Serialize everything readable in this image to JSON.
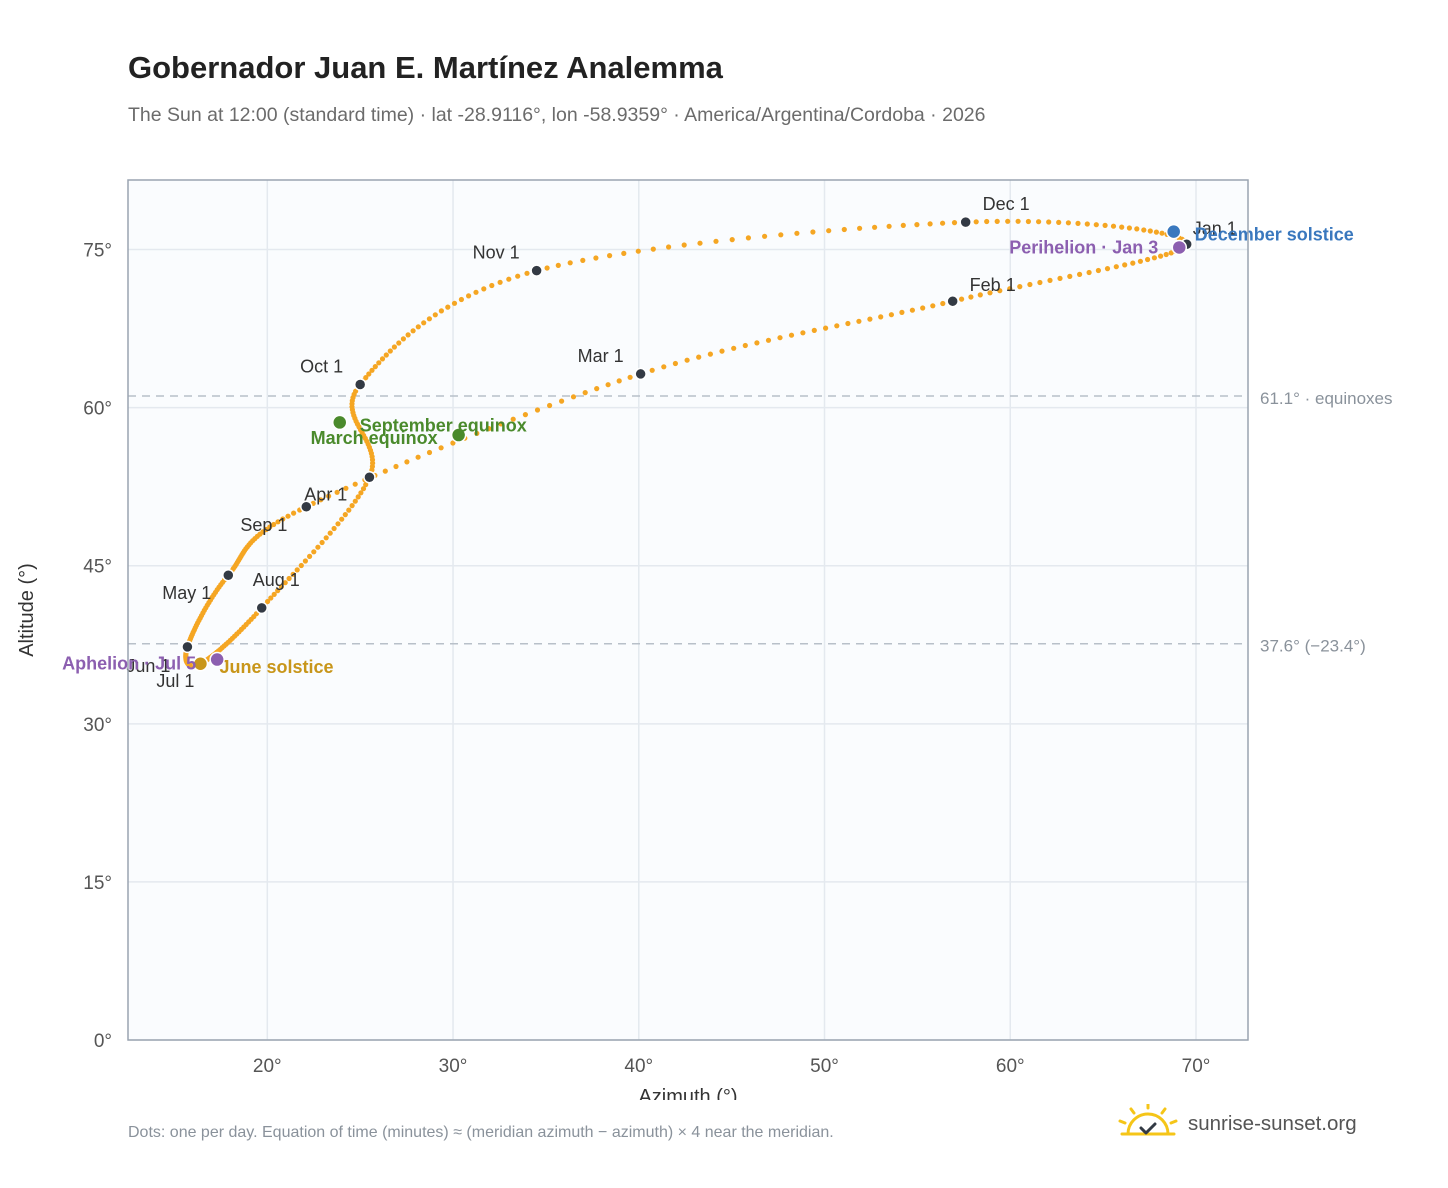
{
  "header": {
    "title": "Gobernador Juan E. Martínez Analemma",
    "subtitle": "The Sun at 12:00 (standard time) · lat -28.9116°, lon -58.9359° · America/Argentina/Cordoba · 2026"
  },
  "footer": {
    "note": "Dots: one per day. Equation of time (minutes) ≈ (meridian azimuth − azimuth) × 4 near the meridian.",
    "brand": "sunrise-sunset.org"
  },
  "colors": {
    "curve": "#f5a623",
    "month_marker": "#333a44",
    "equinox": "#4a8a2c",
    "june_solstice": "#c8961a",
    "december_solstice": "#3a78be",
    "apsis": "#8c5fb0",
    "brand_sun": "#f5c518"
  },
  "chart_data": {
    "type": "scatter",
    "xlabel": "Azimuth (°)",
    "ylabel": "Altitude (°)",
    "xlim": [
      12.5,
      72.8
    ],
    "ylim": [
      0,
      81.6
    ],
    "xticks": [
      20,
      30,
      40,
      50,
      60,
      70
    ],
    "yticks": [
      0,
      15,
      30,
      45,
      60,
      75
    ],
    "xtick_labels": [
      "20°",
      "30°",
      "40°",
      "50°",
      "60°",
      "70°"
    ],
    "ytick_labels": [
      "0°",
      "15°",
      "30°",
      "45°",
      "60°",
      "75°"
    ],
    "grid": true,
    "reference_lines": [
      {
        "y": 61.1,
        "label": "61.1° · equinoxes"
      },
      {
        "y": 37.6,
        "label": "37.6° (−23.4°)"
      }
    ],
    "month_markers": [
      {
        "label": "Jan 1",
        "x": 69.5,
        "y": 75.5
      },
      {
        "label": "Feb 1",
        "x": 56.9,
        "y": 70.1
      },
      {
        "label": "Mar 1",
        "x": 40.1,
        "y": 63.2
      },
      {
        "label": "Apr 1",
        "x": 22.1,
        "y": 50.6
      },
      {
        "label": "May 1",
        "x": 17.9,
        "y": 44.1
      },
      {
        "label": "Jun 1",
        "x": 15.7,
        "y": 37.3
      },
      {
        "label": "Jul 1",
        "x": 16.4,
        "y": 35.7
      },
      {
        "label": "Aug 1",
        "x": 19.7,
        "y": 41.0
      },
      {
        "label": "Sep 1",
        "x": 25.5,
        "y": 53.4
      },
      {
        "label": "Oct 1",
        "x": 25.0,
        "y": 62.2
      },
      {
        "label": "Nov 1",
        "x": 34.5,
        "y": 73.0
      },
      {
        "label": "Dec 1",
        "x": 57.6,
        "y": 77.6
      }
    ],
    "events": [
      {
        "label": "March equinox",
        "x": 30.3,
        "y": 57.4,
        "kind": "equinox"
      },
      {
        "label": "September equinox",
        "x": 23.9,
        "y": 58.6,
        "kind": "equinox"
      },
      {
        "label": "June solstice",
        "x": 16.4,
        "y": 35.7,
        "kind": "june_solstice"
      },
      {
        "label": "December solstice",
        "x": 68.8,
        "y": 76.7,
        "kind": "december_solstice"
      },
      {
        "label": "Aphelion · Jul 5",
        "x": 17.3,
        "y": 36.1,
        "kind": "apsis"
      },
      {
        "label": "Perihelion · Jan 3",
        "x": 69.1,
        "y": 75.2,
        "kind": "apsis"
      }
    ]
  }
}
